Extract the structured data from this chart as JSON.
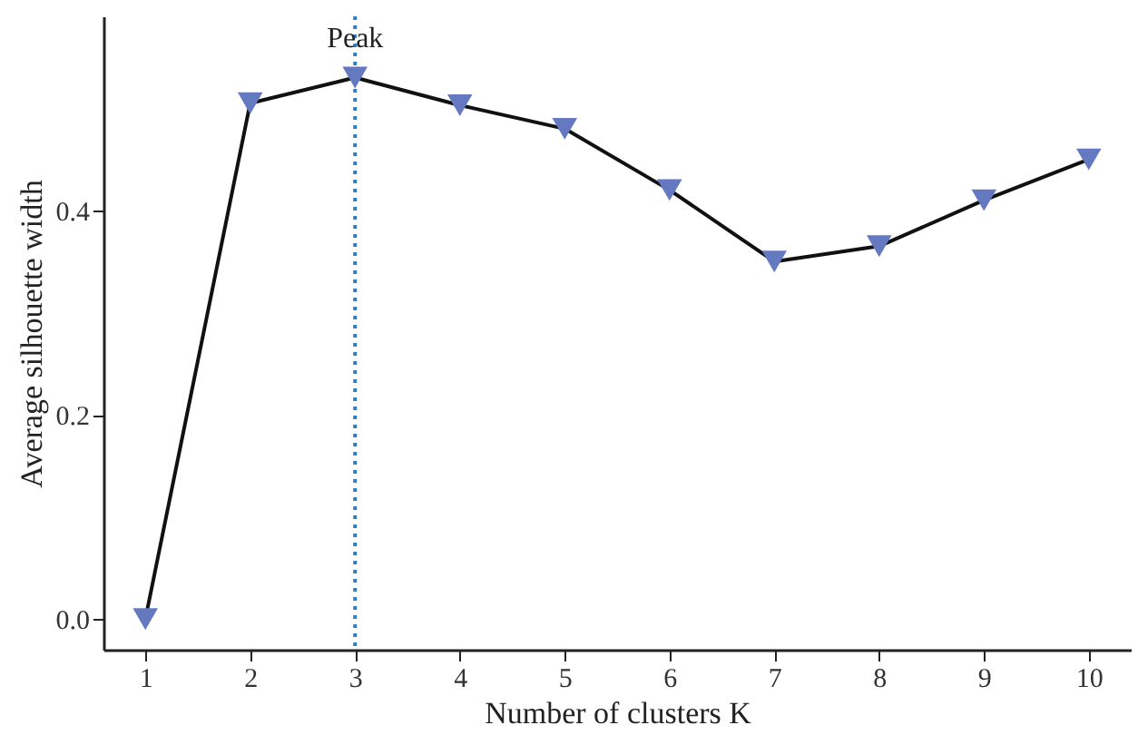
{
  "chart_data": {
    "type": "line",
    "xlabel": "Number of clusters K",
    "ylabel": "Average silhouette width",
    "x": [
      1,
      2,
      3,
      4,
      5,
      6,
      7,
      8,
      9,
      10
    ],
    "series": [
      {
        "color": "#6579c0",
        "values": [
          0.0,
          0.505,
          0.53,
          0.503,
          0.48,
          0.42,
          0.35,
          0.365,
          0.41,
          0.45
        ]
      }
    ],
    "xlim": [
      0.6,
      10.4
    ],
    "xticks": [
      1,
      2,
      3,
      4,
      5,
      6,
      7,
      8,
      9,
      10
    ],
    "ylim": [
      -0.03,
      0.59
    ],
    "yticks": [
      {
        "value": 0,
        "label": "0.0"
      },
      {
        "value": 0.2,
        "label": "0.2"
      },
      {
        "value": 0.4,
        "label": "0.4"
      }
    ],
    "ref_lines": [
      {
        "axis": "x",
        "value": 3,
        "label": "Peak",
        "color": "#2f7dc0",
        "line_style": "dotted"
      }
    ],
    "marker": "triangle",
    "line_style": "solid",
    "grid": false
  }
}
